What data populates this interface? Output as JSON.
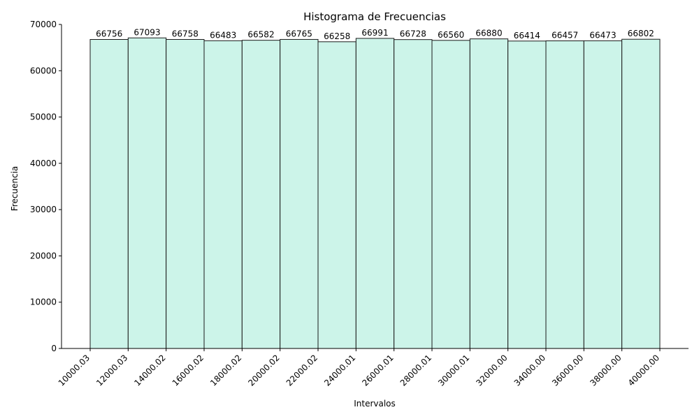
{
  "chart_data": {
    "type": "bar",
    "title": "Histograma de Frecuencias",
    "xlabel": "Intervalos",
    "ylabel": "Frecuencia",
    "bin_edges": [
      "10000.03",
      "12000.03",
      "14000.02",
      "16000.02",
      "18000.02",
      "20000.02",
      "22000.02",
      "24000.01",
      "26000.01",
      "28000.01",
      "30000.01",
      "32000.00",
      "34000.00",
      "36000.00",
      "38000.00",
      "40000.00"
    ],
    "values": [
      66756,
      67093,
      66758,
      66483,
      66582,
      66765,
      66258,
      66991,
      66728,
      66560,
      66880,
      66414,
      66457,
      66473,
      66802
    ],
    "ylim": [
      0,
      70000
    ],
    "yticks": [
      0,
      10000,
      20000,
      30000,
      40000,
      50000,
      60000,
      70000
    ],
    "grid": false,
    "colors": {
      "bar_fill": "#ccf4e9",
      "bar_edge": "#1a1a1a"
    }
  }
}
